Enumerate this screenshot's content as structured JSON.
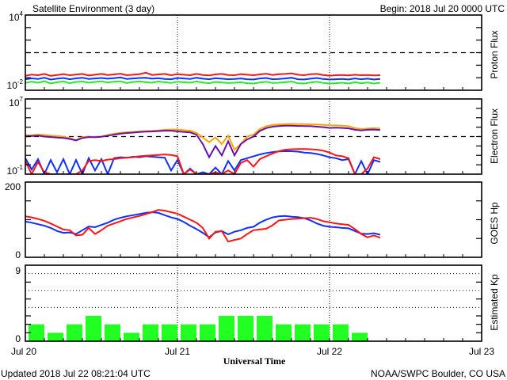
{
  "header": {
    "title": "Satellite Environment (3 day)",
    "begin": "Begin:  2018 Jul 20 0000 UTC"
  },
  "footer": {
    "updated": "Updated 2018 Jul 22 08:21:04 UTC",
    "credit": "NOAA/SWPC Boulder, CO USA"
  },
  "x_axis": {
    "label": "Universal Time",
    "tick_labels": [
      "Jul 20",
      "Jul 21",
      "Jul 22",
      "Jul 23"
    ],
    "range_hours": [
      0,
      72
    ],
    "day_lines_hours": [
      24,
      48
    ]
  },
  "colors": {
    "red": "#ff1414",
    "blue": "#1030ff",
    "green": "#22ee22",
    "orange": "#ffa500",
    "purple": "#6611aa",
    "kp_bar": "#22ff22",
    "axis": "#000000"
  },
  "chart_data": [
    {
      "type": "line",
      "title": "Proton Flux",
      "ylabel": "Proton Flux",
      "yscale": "log",
      "ylim_log10": [
        -2,
        4
      ],
      "y_tick_top": {
        "base": "10",
        "exp": "4"
      },
      "y_tick_bottom": {
        "base": "10",
        "exp": "-2"
      },
      "y_ticks": [
        -1,
        0,
        1,
        2,
        3
      ],
      "threshold": 1,
      "x_start_hours": 0,
      "x_step_hours": 1,
      "series": [
        {
          "name": "red",
          "color": "#ff1414",
          "values_log10": [
            -0.85,
            -0.75,
            -0.8,
            -0.7,
            -0.85,
            -0.78,
            -0.72,
            -0.8,
            -0.75,
            -0.7,
            -0.82,
            -0.76,
            -0.7,
            -0.78,
            -0.74,
            -0.68,
            -0.8,
            -0.76,
            -0.72,
            -0.6,
            -0.78,
            -0.74,
            -0.7,
            -0.8,
            -0.72,
            -0.76,
            -0.8,
            -0.7,
            -0.78,
            -0.82,
            -0.74,
            -0.7,
            -0.78,
            -0.8,
            -0.72,
            -0.76,
            -0.8,
            -0.74,
            -0.68,
            -0.78,
            -0.72,
            -0.7,
            -0.65,
            -0.76,
            -0.8,
            -0.72,
            -0.7,
            -0.78,
            -0.84,
            -0.8,
            -0.78,
            -0.82,
            -0.76,
            -0.8,
            -0.78,
            -0.82,
            -0.8
          ]
        },
        {
          "name": "blue",
          "color": "#1030ff",
          "values_log10": [
            -1.12,
            -1.05,
            -1.1,
            -1.0,
            -1.15,
            -1.08,
            -1.02,
            -1.12,
            -1.05,
            -1.0,
            -1.1,
            -1.06,
            -1.02,
            -1.08,
            -1.04,
            -0.98,
            -1.1,
            -1.06,
            -1.02,
            -1.0,
            -1.08,
            -1.04,
            -1.1,
            -1.12,
            -1.02,
            -1.06,
            -1.1,
            -1.0,
            -1.08,
            -1.12,
            -1.04,
            -1.08,
            -1.12,
            -1.1,
            -1.06,
            -1.12,
            -1.14,
            -1.06,
            -1.02,
            -1.12,
            -1.1,
            -1.06,
            -1.0,
            -1.12,
            -1.14,
            -1.08,
            -1.02,
            -1.1,
            -1.14,
            -1.12,
            -1.1,
            -1.14,
            -1.06,
            -1.12,
            -1.08,
            -1.14,
            -1.1
          ]
        },
        {
          "name": "green",
          "color": "#22ee22",
          "values_log10": [
            -1.42,
            -1.32,
            -1.4,
            -1.28,
            -1.45,
            -1.36,
            -1.3,
            -1.44,
            -1.34,
            -1.3,
            -1.4,
            -1.34,
            -1.28,
            -1.38,
            -1.32,
            -1.28,
            -1.42,
            -1.34,
            -1.3,
            -1.36,
            -1.4,
            -1.3,
            -1.36,
            -1.42,
            -1.32,
            -1.36,
            -1.4,
            -1.3,
            -1.38,
            -1.44,
            -1.34,
            -1.38,
            -1.42,
            -1.4,
            -1.36,
            -1.44,
            -1.46,
            -1.38,
            -1.32,
            -1.42,
            -1.4,
            -1.36,
            -1.3,
            -1.44,
            -1.46,
            -1.38,
            -1.32,
            -1.42,
            -1.46,
            -1.44,
            -1.4,
            -1.46,
            -1.36,
            -1.44,
            -1.38,
            -1.46,
            -1.4
          ]
        }
      ]
    },
    {
      "type": "line",
      "title": "Electron Flux",
      "ylabel": "Electron Flux",
      "yscale": "log",
      "ylim_log10": [
        -1,
        7
      ],
      "y_tick_top": {
        "base": "10",
        "exp": "7"
      },
      "y_tick_bottom": {
        "base": "10",
        "exp": "-1"
      },
      "y_ticks": [
        0,
        1,
        2,
        3,
        4,
        5,
        6
      ],
      "threshold": 3,
      "x_start_hours": 0,
      "x_step_hours": 1,
      "series": [
        {
          "name": "orange",
          "color": "#ffa500",
          "values_log10": [
            3.15,
            3.15,
            3.2,
            3.18,
            3.1,
            3.05,
            3.0,
            2.85,
            2.6,
            2.95,
            3.0,
            2.95,
            3.0,
            3.15,
            3.3,
            3.4,
            3.45,
            3.5,
            3.55,
            3.58,
            3.6,
            3.65,
            3.72,
            3.75,
            3.75,
            3.68,
            3.62,
            3.4,
            2.9,
            2.4,
            2.9,
            2.2,
            3.1,
            1.6,
            2.2,
            3.0,
            3.2,
            3.8,
            4.1,
            4.25,
            4.3,
            4.33,
            4.35,
            4.33,
            4.32,
            4.3,
            4.28,
            4.25,
            4.2,
            4.2,
            4.15,
            4.1,
            3.9,
            3.8,
            3.85,
            3.9,
            3.85
          ]
        },
        {
          "name": "purple",
          "color": "#6611aa",
          "values_log10": [
            3.05,
            3.05,
            3.1,
            3.0,
            2.95,
            2.9,
            2.85,
            2.75,
            2.6,
            2.85,
            2.95,
            2.92,
            2.98,
            3.1,
            3.2,
            3.3,
            3.38,
            3.42,
            3.48,
            3.52,
            3.55,
            3.58,
            3.62,
            3.62,
            3.55,
            3.5,
            3.45,
            3.2,
            2.2,
            0.8,
            2.0,
            1.0,
            2.5,
            1.0,
            2.2,
            2.7,
            3.0,
            3.6,
            3.9,
            4.05,
            4.12,
            4.15,
            4.15,
            4.13,
            4.12,
            4.1,
            4.05,
            4.0,
            3.92,
            3.95,
            3.92,
            3.88,
            3.72,
            3.65,
            3.72,
            3.75,
            3.7
          ]
        },
        {
          "name": "blue",
          "color": "#1030ff",
          "values_log10": [
            0.7,
            -0.5,
            0.6,
            -1,
            0.5,
            -0.8,
            0.6,
            -1,
            0.5,
            -1,
            0.7,
            -0.6,
            0.6,
            -1,
            0.7,
            0.8,
            0.75,
            0.85,
            0.8,
            0.9,
            0.85,
            0.8,
            0.75,
            -0.6,
            0.5,
            -1,
            -0.4,
            -1,
            -0.8,
            -1,
            -0.3,
            -1,
            0.4,
            -0.6,
            0.5,
            0.7,
            0.9,
            1.1,
            1.25,
            1.35,
            1.42,
            1.45,
            1.44,
            1.4,
            1.3,
            1.25,
            1.15,
            1.0,
            0.8,
            0.7,
            0.5,
            0.6,
            -1,
            0.4,
            -1,
            0.5,
            0.3
          ]
        },
        {
          "name": "red",
          "color": "#ff1414",
          "values_log10": [
            0.4,
            -1,
            0.3,
            -0.8,
            -1,
            -1,
            -1,
            -1,
            -1,
            -0.6,
            0.4,
            0.5,
            0.4,
            0.55,
            0.6,
            0.7,
            0.75,
            0.8,
            0.9,
            0.95,
            1.0,
            1.05,
            1.1,
            1.05,
            0.9,
            -1,
            -0.5,
            -1,
            -1,
            -1,
            -0.8,
            -1,
            -0.6,
            -1,
            0.2,
            0.5,
            -0.2,
            0.6,
            0.9,
            1.2,
            1.45,
            1.6,
            1.65,
            1.67,
            1.67,
            1.65,
            1.6,
            1.5,
            1.3,
            1.0,
            0.9,
            0.7,
            -1,
            -1,
            -0.4,
            0.8,
            0.6
          ]
        }
      ]
    },
    {
      "type": "line",
      "title": "GOES Hp",
      "ylabel": "GOES Hp",
      "yscale": "linear",
      "ylim": [
        0,
        200
      ],
      "y_tick_top": "200",
      "y_tick_bottom": "0",
      "y_ticks": [
        50,
        100,
        150
      ],
      "x_start_hours": 0,
      "x_step_hours": 1,
      "series": [
        {
          "name": "blue",
          "color": "#1030ff",
          "values": [
            95,
            92,
            88,
            84,
            78,
            70,
            65,
            66,
            62,
            72,
            82,
            80,
            86,
            92,
            100,
            105,
            109,
            112,
            115,
            118,
            120,
            118,
            112,
            106,
            102,
            94,
            84,
            75,
            65,
            53,
            66,
            70,
            61,
            68,
            72,
            78,
            81,
            92,
            100,
            106,
            109,
            110,
            108,
            107,
            104,
            98,
            90,
            84,
            81,
            80,
            78,
            77,
            70,
            63,
            62,
            64,
            60
          ]
        },
        {
          "name": "red",
          "color": "#ff1414",
          "values": [
            109,
            106,
            102,
            97,
            90,
            82,
            74,
            72,
            58,
            60,
            78,
            62,
            72,
            84,
            90,
            96,
            102,
            106,
            110,
            115,
            120,
            126,
            124,
            120,
            116,
            108,
            100,
            92,
            78,
            50,
            68,
            70,
            42,
            46,
            50,
            62,
            72,
            74,
            76,
            85,
            98,
            100,
            102,
            103,
            104,
            105,
            102,
            96,
            93,
            90,
            88,
            86,
            75,
            62,
            53,
            58,
            52
          ]
        }
      ]
    },
    {
      "type": "bar",
      "title": "Estimated Kp",
      "ylabel": "Estimated Kp",
      "ylim": [
        0,
        9
      ],
      "y_tick_top": "9",
      "y_tick_bottom": "0",
      "y_ticks": [
        1,
        2,
        3,
        5,
        7
      ],
      "gridlines": [
        4,
        6,
        8
      ],
      "bin_hours": 3,
      "color": "#22ff22",
      "values": [
        2,
        1,
        2,
        3,
        2,
        1,
        2,
        2,
        2,
        2,
        3,
        3,
        3,
        2,
        2,
        2,
        2,
        1
      ]
    }
  ]
}
